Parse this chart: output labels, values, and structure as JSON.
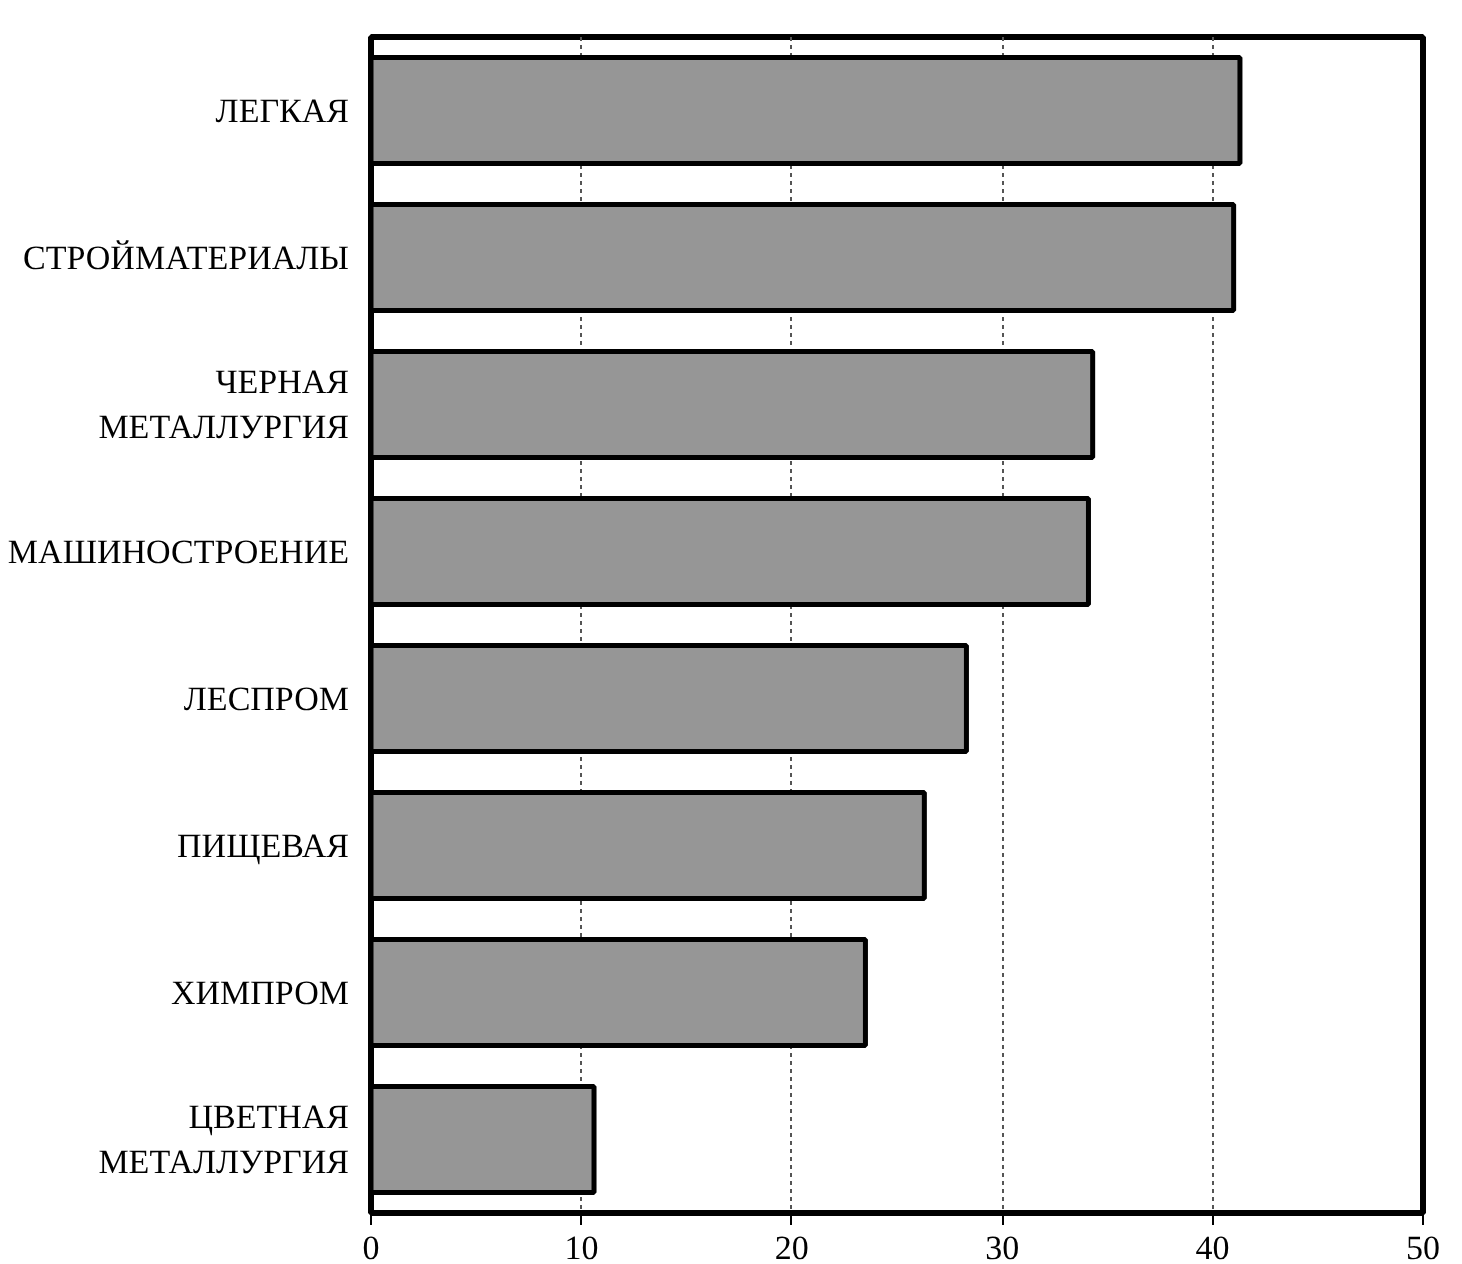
{
  "chart_data": {
    "type": "bar",
    "orientation": "horizontal",
    "categories": [
      "ЛЕГКАЯ",
      "СТРОЙМАТЕРИАЛЫ",
      "ЧЕРНАЯ\nМЕТАЛЛУРГИЯ",
      "МАШИНОСТРОЕНИЕ",
      "ЛЕСПРОМ",
      "ПИЩЕВАЯ",
      "ХИМПРОМ",
      "ЦВЕТНАЯ\nМЕТАЛЛУРГИЯ"
    ],
    "values": [
      41.3,
      41.0,
      34.3,
      34.1,
      28.3,
      26.3,
      23.5,
      10.6
    ],
    "color": "#969696",
    "xlim": [
      0,
      50
    ],
    "xticks": [
      0,
      10,
      20,
      30,
      40,
      50
    ],
    "grid": "x"
  }
}
